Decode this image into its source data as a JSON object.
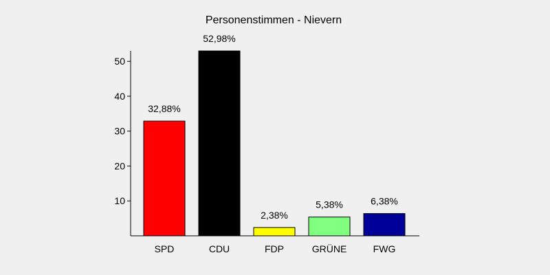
{
  "chart_data": {
    "type": "bar",
    "title": "Personenstimmen - Nievern",
    "xlabel": "",
    "ylabel": "",
    "categories": [
      "SPD",
      "CDU",
      "FDP",
      "GRÜNE",
      "FWG"
    ],
    "values": [
      32.88,
      52.98,
      2.38,
      5.38,
      6.38
    ],
    "data_labels": [
      "32,88%",
      "52,98%",
      "2,38%",
      "5,38%",
      "6,38%"
    ],
    "colors": [
      "#ff0000",
      "#000000",
      "#ffff00",
      "#80ff80",
      "#000099"
    ],
    "ylim": [
      0,
      53
    ],
    "yticks": [
      10,
      20,
      30,
      40,
      50
    ],
    "ytick_labels": [
      "10",
      "20",
      "30",
      "40",
      "50"
    ],
    "grid": false,
    "legend": "none"
  }
}
